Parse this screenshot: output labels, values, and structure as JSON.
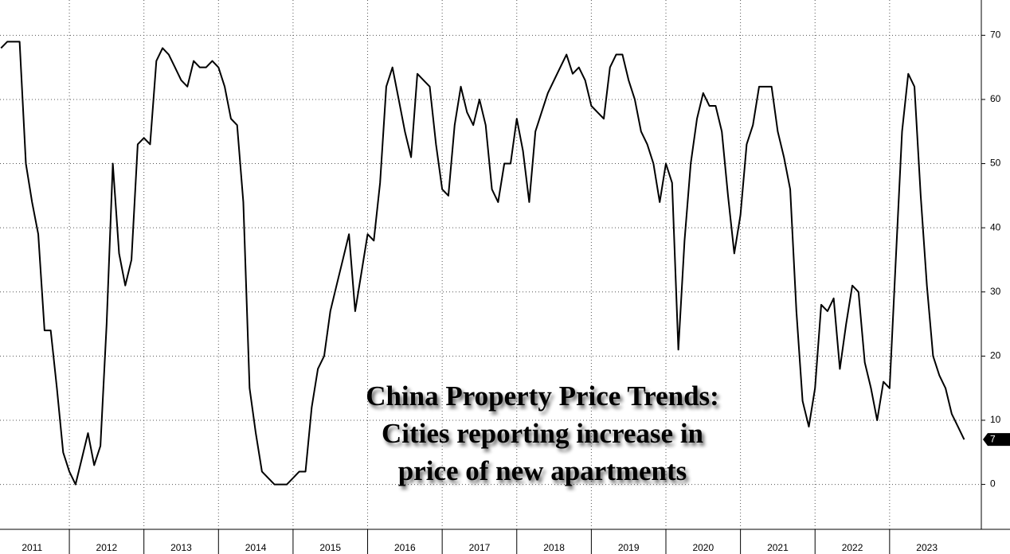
{
  "chart_data": {
    "type": "line",
    "annotation": [
      "China Property Price Trends:",
      "Cities reporting increase in",
      "price of new apartments"
    ],
    "color": "#000000",
    "x": [
      2011.083,
      2011.167,
      2011.25,
      2011.333,
      2011.417,
      2011.5,
      2011.583,
      2011.667,
      2011.75,
      2011.833,
      2011.917,
      2012.0,
      2012.083,
      2012.167,
      2012.25,
      2012.333,
      2012.417,
      2012.5,
      2012.583,
      2012.667,
      2012.75,
      2012.833,
      2012.917,
      2013.0,
      2013.083,
      2013.167,
      2013.25,
      2013.333,
      2013.417,
      2013.5,
      2013.583,
      2013.667,
      2013.75,
      2013.833,
      2013.917,
      2014.0,
      2014.083,
      2014.167,
      2014.25,
      2014.333,
      2014.417,
      2014.5,
      2014.583,
      2014.667,
      2014.75,
      2014.833,
      2014.917,
      2015.0,
      2015.083,
      2015.167,
      2015.25,
      2015.333,
      2015.417,
      2015.5,
      2015.583,
      2015.667,
      2015.75,
      2015.833,
      2015.917,
      2016.0,
      2016.083,
      2016.167,
      2016.25,
      2016.333,
      2016.417,
      2016.5,
      2016.583,
      2016.667,
      2016.75,
      2016.833,
      2016.917,
      2017.0,
      2017.083,
      2017.167,
      2017.25,
      2017.333,
      2017.417,
      2017.5,
      2017.583,
      2017.667,
      2017.75,
      2017.833,
      2017.917,
      2018.0,
      2018.083,
      2018.167,
      2018.25,
      2018.333,
      2018.417,
      2018.5,
      2018.583,
      2018.667,
      2018.75,
      2018.833,
      2018.917,
      2019.0,
      2019.083,
      2019.167,
      2019.25,
      2019.333,
      2019.417,
      2019.5,
      2019.583,
      2019.667,
      2019.75,
      2019.833,
      2019.917,
      2020.0,
      2020.083,
      2020.167,
      2020.25,
      2020.333,
      2020.417,
      2020.5,
      2020.583,
      2020.667,
      2020.75,
      2020.833,
      2020.917,
      2021.0,
      2021.083,
      2021.167,
      2021.25,
      2021.333,
      2021.417,
      2021.5,
      2021.583,
      2021.667,
      2021.75,
      2021.833,
      2021.917,
      2022.0,
      2022.083,
      2022.167,
      2022.25,
      2022.333,
      2022.417,
      2022.5,
      2022.583,
      2022.667,
      2022.75,
      2022.833,
      2022.917,
      2023.0,
      2023.083,
      2023.167,
      2023.25,
      2023.333,
      2023.417,
      2023.5,
      2023.583,
      2023.667,
      2023.75,
      2023.833,
      2023.917,
      2024.0
    ],
    "values": [
      68,
      69,
      69,
      69,
      50,
      44,
      39,
      24,
      24,
      15,
      5,
      2,
      0,
      4,
      8,
      3,
      6,
      25,
      50,
      36,
      31,
      35,
      53,
      54,
      53,
      66,
      68,
      67,
      65,
      63,
      62,
      66,
      65,
      65,
      66,
      65,
      62,
      57,
      56,
      44,
      15,
      8,
      2,
      1,
      0,
      0,
      0,
      1,
      2,
      2,
      12,
      18,
      20,
      27,
      31,
      35,
      39,
      27,
      33,
      39,
      38,
      47,
      62,
      65,
      60,
      55,
      51,
      64,
      63,
      62,
      53,
      46,
      45,
      56,
      62,
      58,
      56,
      60,
      56,
      46,
      44,
      50,
      50,
      57,
      52,
      44,
      55,
      58,
      61,
      63,
      65,
      67,
      64,
      65,
      63,
      59,
      58,
      57,
      65,
      67,
      67,
      63,
      60,
      55,
      53,
      50,
      44,
      50,
      47,
      21,
      38,
      50,
      57,
      61,
      59,
      59,
      55,
      45,
      36,
      42,
      53,
      56,
      62,
      62,
      62,
      55,
      51,
      46,
      27,
      13,
      9,
      15,
      28,
      27,
      29,
      18,
      25,
      31,
      30,
      19,
      15,
      10,
      16,
      15,
      35,
      55,
      64,
      62,
      45,
      31,
      20,
      17,
      15,
      11,
      9,
      7
    ],
    "xlim": [
      2011.07,
      2024.23
    ],
    "xticks": [
      2011,
      2012,
      2013,
      2014,
      2015,
      2016,
      2017,
      2018,
      2019,
      2020,
      2021,
      2022,
      2023
    ],
    "ylim": [
      -7,
      75.5
    ],
    "yticks": [
      0,
      10,
      20,
      30,
      40,
      50,
      60,
      70
    ],
    "grid": true
  }
}
